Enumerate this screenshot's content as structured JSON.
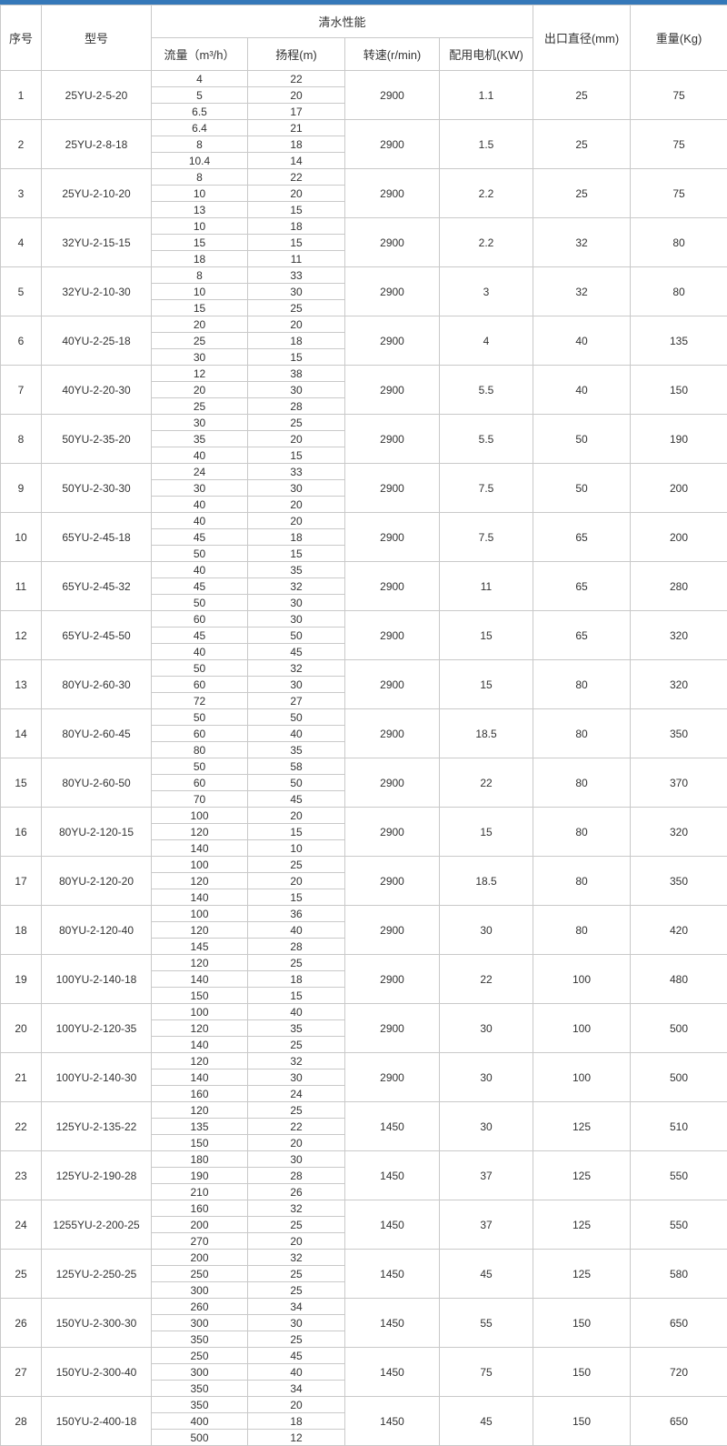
{
  "page": {
    "top_bar_color": "#3578b9",
    "border_color": "#c9c9c9"
  },
  "table": {
    "header": {
      "no": "序号",
      "model": "型号",
      "performance": "清水性能",
      "flow": "流量（m³/h）",
      "head": "扬程(m)",
      "speed": "转速(r/min)",
      "motor": "配用电机(KW)",
      "outlet": "出口直径(mm)",
      "weight": "重量(Kg)"
    },
    "groups": [
      {
        "no": "1",
        "model": "25YU-2-5-20",
        "flow": [
          "4",
          "5",
          "6.5"
        ],
        "head": [
          "22",
          "20",
          "17"
        ],
        "speed": "2900",
        "motor": "1.1",
        "outlet": "25",
        "weight": "75"
      },
      {
        "no": "2",
        "model": "25YU-2-8-18",
        "flow": [
          "6.4",
          "8",
          "10.4"
        ],
        "head": [
          "21",
          "18",
          "14"
        ],
        "speed": "2900",
        "motor": "1.5",
        "outlet": "25",
        "weight": "75"
      },
      {
        "no": "3",
        "model": "25YU-2-10-20",
        "flow": [
          "8",
          "10",
          "13"
        ],
        "head": [
          "22",
          "20",
          "15"
        ],
        "speed": "2900",
        "motor": "2.2",
        "outlet": "25",
        "weight": "75"
      },
      {
        "no": "4",
        "model": "32YU-2-15-15",
        "flow": [
          "10",
          "15",
          "18"
        ],
        "head": [
          "18",
          "15",
          "11"
        ],
        "speed": "2900",
        "motor": "2.2",
        "outlet": "32",
        "weight": "80"
      },
      {
        "no": "5",
        "model": "32YU-2-10-30",
        "flow": [
          "8",
          "10",
          "15"
        ],
        "head": [
          "33",
          "30",
          "25"
        ],
        "speed": "2900",
        "motor": "3",
        "outlet": "32",
        "weight": "80"
      },
      {
        "no": "6",
        "model": "40YU-2-25-18",
        "flow": [
          "20",
          "25",
          "30"
        ],
        "head": [
          "20",
          "18",
          "15"
        ],
        "speed": "2900",
        "motor": "4",
        "outlet": "40",
        "weight": "135"
      },
      {
        "no": "7",
        "model": "40YU-2-20-30",
        "flow": [
          "12",
          "20",
          "25"
        ],
        "head": [
          "38",
          "30",
          "28"
        ],
        "speed": "2900",
        "motor": "5.5",
        "outlet": "40",
        "weight": "150"
      },
      {
        "no": "8",
        "model": "50YU-2-35-20",
        "flow": [
          "30",
          "35",
          "40"
        ],
        "head": [
          "25",
          "20",
          "15"
        ],
        "speed": "2900",
        "motor": "5.5",
        "outlet": "50",
        "weight": "190"
      },
      {
        "no": "9",
        "model": "50YU-2-30-30",
        "flow": [
          "24",
          "30",
          "40"
        ],
        "head": [
          "33",
          "30",
          "20"
        ],
        "speed": "2900",
        "motor": "7.5",
        "outlet": "50",
        "weight": "200"
      },
      {
        "no": "10",
        "model": "65YU-2-45-18",
        "flow": [
          "40",
          "45",
          "50"
        ],
        "head": [
          "20",
          "18",
          "15"
        ],
        "speed": "2900",
        "motor": "7.5",
        "outlet": "65",
        "weight": "200"
      },
      {
        "no": "11",
        "model": "65YU-2-45-32",
        "flow": [
          "40",
          "45",
          "50"
        ],
        "head": [
          "35",
          "32",
          "30"
        ],
        "speed": "2900",
        "motor": "11",
        "outlet": "65",
        "weight": "280"
      },
      {
        "no": "12",
        "model": "65YU-2-45-50",
        "flow": [
          "60",
          "45",
          "40"
        ],
        "head": [
          "30",
          "50",
          "45"
        ],
        "speed": "2900",
        "motor": "15",
        "outlet": "65",
        "weight": "320"
      },
      {
        "no": "13",
        "model": "80YU-2-60-30",
        "flow": [
          "50",
          "60",
          "72"
        ],
        "head": [
          "32",
          "30",
          "27"
        ],
        "speed": "2900",
        "motor": "15",
        "outlet": "80",
        "weight": "320"
      },
      {
        "no": "14",
        "model": "80YU-2-60-45",
        "flow": [
          "50",
          "60",
          "80"
        ],
        "head": [
          "50",
          "40",
          "35"
        ],
        "speed": "2900",
        "motor": "18.5",
        "outlet": "80",
        "weight": "350"
      },
      {
        "no": "15",
        "model": "80YU-2-60-50",
        "flow": [
          "50",
          "60",
          "70"
        ],
        "head": [
          "58",
          "50",
          "45"
        ],
        "speed": "2900",
        "motor": "22",
        "outlet": "80",
        "weight": "370"
      },
      {
        "no": "16",
        "model": "80YU-2-120-15",
        "flow": [
          "100",
          "120",
          "140"
        ],
        "head": [
          "20",
          "15",
          "10"
        ],
        "speed": "2900",
        "motor": "15",
        "outlet": "80",
        "weight": "320"
      },
      {
        "no": "17",
        "model": "80YU-2-120-20",
        "flow": [
          "100",
          "120",
          "140"
        ],
        "head": [
          "25",
          "20",
          "15"
        ],
        "speed": "2900",
        "motor": "18.5",
        "outlet": "80",
        "weight": "350"
      },
      {
        "no": "18",
        "model": "80YU-2-120-40",
        "flow": [
          "100",
          "120",
          "145"
        ],
        "head": [
          "36",
          "40",
          "28"
        ],
        "speed": "2900",
        "motor": "30",
        "outlet": "80",
        "weight": "420"
      },
      {
        "no": "19",
        "model": "100YU-2-140-18",
        "flow": [
          "120",
          "140",
          "150"
        ],
        "head": [
          "25",
          "18",
          "15"
        ],
        "speed": "2900",
        "motor": "22",
        "outlet": "100",
        "weight": "480"
      },
      {
        "no": "20",
        "model": "100YU-2-120-35",
        "flow": [
          "100",
          "120",
          "140"
        ],
        "head": [
          "40",
          "35",
          "25"
        ],
        "speed": "2900",
        "motor": "30",
        "outlet": "100",
        "weight": "500"
      },
      {
        "no": "21",
        "model": "100YU-2-140-30",
        "flow": [
          "120",
          "140",
          "160"
        ],
        "head": [
          "32",
          "30",
          "24"
        ],
        "speed": "2900",
        "motor": "30",
        "outlet": "100",
        "weight": "500"
      },
      {
        "no": "22",
        "model": "125YU-2-135-22",
        "flow": [
          "120",
          "135",
          "150"
        ],
        "head": [
          "25",
          "22",
          "20"
        ],
        "speed": "1450",
        "motor": "30",
        "outlet": "125",
        "weight": "510"
      },
      {
        "no": "23",
        "model": "125YU-2-190-28",
        "flow": [
          "180",
          "190",
          "210"
        ],
        "head": [
          "30",
          "28",
          "26"
        ],
        "speed": "1450",
        "motor": "37",
        "outlet": "125",
        "weight": "550"
      },
      {
        "no": "24",
        "model": "1255YU-2-200-25",
        "flow": [
          "160",
          "200",
          "270"
        ],
        "head": [
          "32",
          "25",
          "20"
        ],
        "speed": "1450",
        "motor": "37",
        "outlet": "125",
        "weight": "550"
      },
      {
        "no": "25",
        "model": "125YU-2-250-25",
        "flow": [
          "200",
          "250",
          "300"
        ],
        "head": [
          "32",
          "25",
          "25"
        ],
        "speed": "1450",
        "motor": "45",
        "outlet": "125",
        "weight": "580"
      },
      {
        "no": "26",
        "model": "150YU-2-300-30",
        "flow": [
          "260",
          "300",
          "350"
        ],
        "head": [
          "34",
          "30",
          "25"
        ],
        "speed": "1450",
        "motor": "55",
        "outlet": "150",
        "weight": "650"
      },
      {
        "no": "27",
        "model": "150YU-2-300-40",
        "flow": [
          "250",
          "300",
          "350"
        ],
        "head": [
          "45",
          "40",
          "34"
        ],
        "speed": "1450",
        "motor": "75",
        "outlet": "150",
        "weight": "720"
      },
      {
        "no": "28",
        "model": "150YU-2-400-18",
        "flow": [
          "350",
          "400",
          "500"
        ],
        "head": [
          "20",
          "18",
          "12"
        ],
        "speed": "1450",
        "motor": "45",
        "outlet": "150",
        "weight": "650"
      }
    ]
  }
}
